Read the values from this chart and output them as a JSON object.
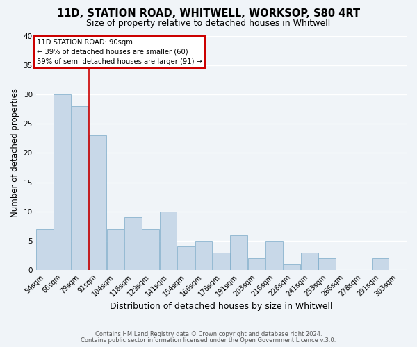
{
  "title": "11D, STATION ROAD, WHITWELL, WORKSOP, S80 4RT",
  "subtitle": "Size of property relative to detached houses in Whitwell",
  "xlabel": "Distribution of detached houses by size in Whitwell",
  "ylabel": "Number of detached properties",
  "bar_color": "#c8d8e8",
  "bar_edge_color": "#7aaac8",
  "background_color": "#f0f4f8",
  "grid_color": "#ffffff",
  "bins": [
    "54sqm",
    "66sqm",
    "79sqm",
    "91sqm",
    "104sqm",
    "116sqm",
    "129sqm",
    "141sqm",
    "154sqm",
    "166sqm",
    "178sqm",
    "191sqm",
    "203sqm",
    "216sqm",
    "228sqm",
    "241sqm",
    "253sqm",
    "266sqm",
    "278sqm",
    "291sqm",
    "303sqm"
  ],
  "counts": [
    7,
    30,
    28,
    23,
    7,
    9,
    7,
    10,
    4,
    5,
    3,
    6,
    2,
    5,
    1,
    3,
    2,
    0,
    0,
    2,
    0
  ],
  "ylim": [
    0,
    40
  ],
  "yticks": [
    0,
    5,
    10,
    15,
    20,
    25,
    30,
    35,
    40
  ],
  "vline_bin_index": 3,
  "annotation_title": "11D STATION ROAD: 90sqm",
  "annotation_line1": "← 39% of detached houses are smaller (60)",
  "annotation_line2": "59% of semi-detached houses are larger (91) →",
  "annotation_box_color": "#ffffff",
  "annotation_border_color": "#cc0000",
  "vline_color": "#cc0000",
  "footer_line1": "Contains HM Land Registry data © Crown copyright and database right 2024.",
  "footer_line2": "Contains public sector information licensed under the Open Government Licence v.3.0."
}
